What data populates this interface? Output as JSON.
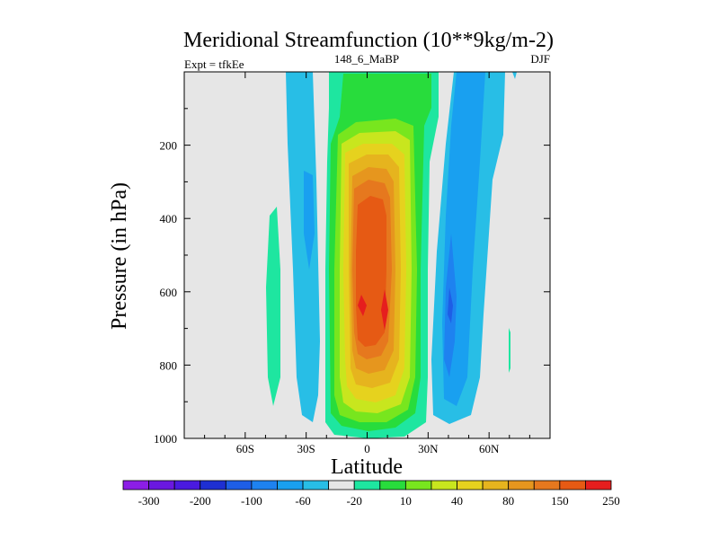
{
  "chart_data": {
    "type": "contour",
    "title": "Meridional Streamfunction (10**9kg/m-2)",
    "subtitle_left": "Expt = tfkEe",
    "subtitle_center": "148_6_MaBP",
    "subtitle_right": "DJF",
    "xlabel": "Latitude",
    "ylabel": "Pressure (in hPa)",
    "xlim": [
      -90,
      90
    ],
    "ylim": [
      0,
      1000
    ],
    "y_inverted": true,
    "x_ticks": [
      {
        "value": -60,
        "label": "60S"
      },
      {
        "value": -30,
        "label": "30S"
      },
      {
        "value": 0,
        "label": "0"
      },
      {
        "value": 30,
        "label": "30N"
      },
      {
        "value": 60,
        "label": "60N"
      }
    ],
    "y_ticks": [
      {
        "value": 200,
        "label": "200"
      },
      {
        "value": 400,
        "label": "400"
      },
      {
        "value": 600,
        "label": "600"
      },
      {
        "value": 800,
        "label": "800"
      },
      {
        "value": 1000,
        "label": "1000"
      }
    ],
    "colorbar": {
      "colors": [
        "#8c1ee6",
        "#6a18e0",
        "#4a1ae0",
        "#1e2fd2",
        "#1e5ee6",
        "#1e82f0",
        "#19a0f0",
        "#28bee6",
        "#e6e6e6",
        "#1ee6a0",
        "#28dc3c",
        "#78e61e",
        "#c8e61e",
        "#e6d21e",
        "#e6b41e",
        "#e6961e",
        "#e6781e",
        "#e65a14",
        "#e61e1e"
      ],
      "tick_labels": [
        "-300",
        "-200",
        "-100",
        "-60",
        "-20",
        "10",
        "40",
        "80",
        "150",
        "250"
      ]
    },
    "features": [
      {
        "name": "Hadley cell (positive)",
        "lat_range": [
          -12,
          18
        ],
        "pressure_range": [
          30,
          980
        ],
        "peak_value": 250
      },
      {
        "name": "Southern negative cell",
        "lat_range": [
          -38,
          -24
        ],
        "pressure_range": [
          0,
          950
        ],
        "peak_value": -20
      },
      {
        "name": "Northern negative cell",
        "lat_range": [
          28,
          48
        ],
        "pressure_range": [
          0,
          950
        ],
        "peak_value": -60
      },
      {
        "name": "Southern weak positive cell",
        "lat_range": [
          -48,
          -44
        ],
        "pressure_range": [
          300,
          900
        ],
        "peak_value": 10
      }
    ]
  }
}
